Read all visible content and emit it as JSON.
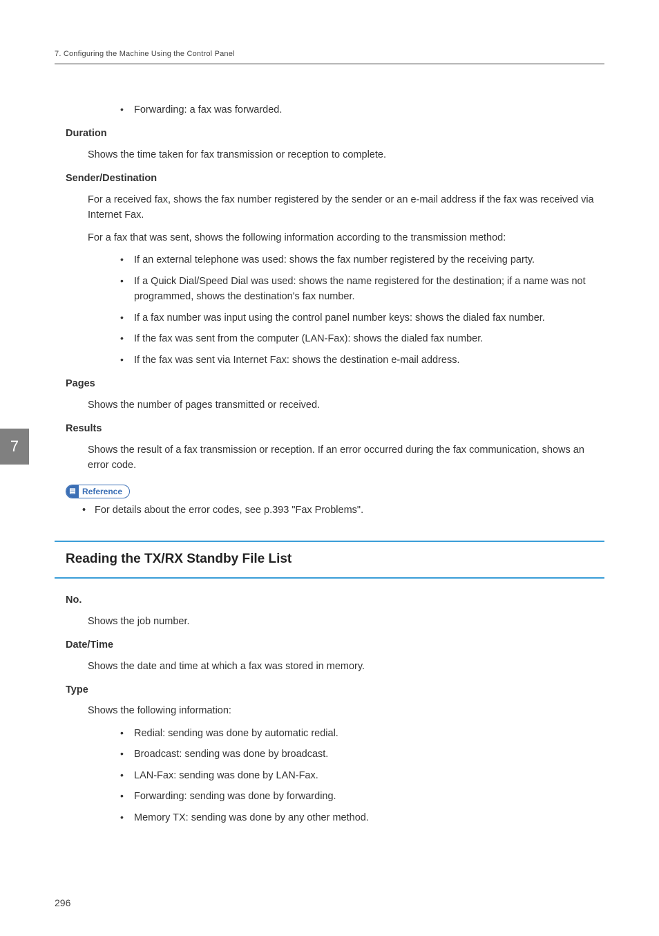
{
  "header": {
    "chapter_line": "7. Configuring the Machine Using the Control Panel"
  },
  "side_tab": "7",
  "page_number": "296",
  "forwarding_bullet": "Forwarding: a fax was forwarded.",
  "duration": {
    "term": "Duration",
    "body": "Shows the time taken for fax transmission or reception to complete."
  },
  "sender_dest": {
    "term": "Sender/Destination",
    "p1": "For a received fax, shows the fax number registered by the sender or an e-mail address if the fax was received via Internet Fax.",
    "p2": "For a fax that was sent, shows the following information according to the transmission method:",
    "items": [
      "If an external telephone was used: shows the fax number registered by the receiving party.",
      "If a Quick Dial/Speed Dial was used: shows the name registered for the destination; if a name was not programmed, shows the destination's fax number.",
      "If a fax number was input using the control panel number keys: shows the dialed fax number.",
      "If the fax was sent from the computer (LAN-Fax): shows the dialed fax number.",
      "If the fax was sent via Internet Fax: shows the destination e-mail address."
    ]
  },
  "pages": {
    "term": "Pages",
    "body": "Shows the number of pages transmitted or received."
  },
  "results": {
    "term": "Results",
    "body": "Shows the result of a fax transmission or reception. If an error occurred during the fax communication, shows an error code."
  },
  "reference": {
    "label": "Reference",
    "item": "For details about the error codes, see p.393 \"Fax Problems\"."
  },
  "section2": {
    "heading": "Reading the TX/RX Standby File List",
    "no": {
      "term": "No.",
      "body": "Shows the job number."
    },
    "datetime": {
      "term": "Date/Time",
      "body": "Shows the date and time at which a fax was stored in memory."
    },
    "type": {
      "term": "Type",
      "body": "Shows the following information:",
      "items": [
        "Redial: sending was done by automatic redial.",
        "Broadcast: sending was done by broadcast.",
        "LAN-Fax: sending was done by LAN-Fax.",
        "Forwarding: sending was done by forwarding.",
        "Memory TX: sending was done by any other method."
      ]
    }
  }
}
